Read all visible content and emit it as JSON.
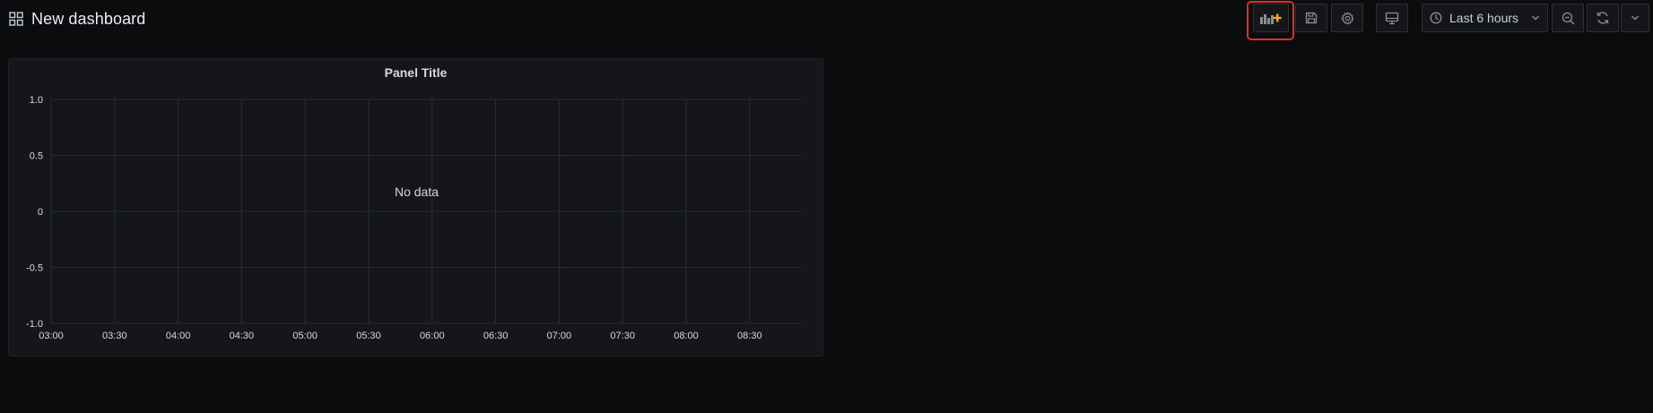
{
  "header": {
    "title": "New dashboard",
    "icon": "dashboard-grid-icon"
  },
  "toolbar": {
    "add_panel_icon": "add-panel-icon",
    "save_icon": "save-icon",
    "settings_icon": "gear-icon",
    "tv_mode_icon": "tv-monitor-icon",
    "time_range": "Last 6 hours",
    "time_icon": "clock-icon",
    "zoom_out_icon": "zoom-out-icon",
    "refresh_icon": "refresh-icon",
    "refresh_menu_icon": "chevron-down-icon",
    "highlight_color": "#e02f25"
  },
  "panel": {
    "title": "Panel Title",
    "no_data_text": "No data"
  },
  "chart_data": {
    "type": "line",
    "title": "Panel Title",
    "xlabel": "",
    "ylabel": "",
    "x_ticks": [
      "03:00",
      "03:30",
      "04:00",
      "04:30",
      "05:00",
      "05:30",
      "06:00",
      "06:30",
      "07:00",
      "07:30",
      "08:00",
      "08:30"
    ],
    "y_ticks": [
      "1.0",
      "0.5",
      "0",
      "-0.5",
      "-1.0"
    ],
    "ylim": [
      -1.0,
      1.0
    ],
    "series": [],
    "grid": true,
    "annotation": "No data"
  },
  "colors": {
    "background": "#0b0c0e",
    "panel_background": "#141619",
    "grid": "#2a2d31",
    "text": "#d8d9da",
    "accent_orange": "#f5a623"
  }
}
